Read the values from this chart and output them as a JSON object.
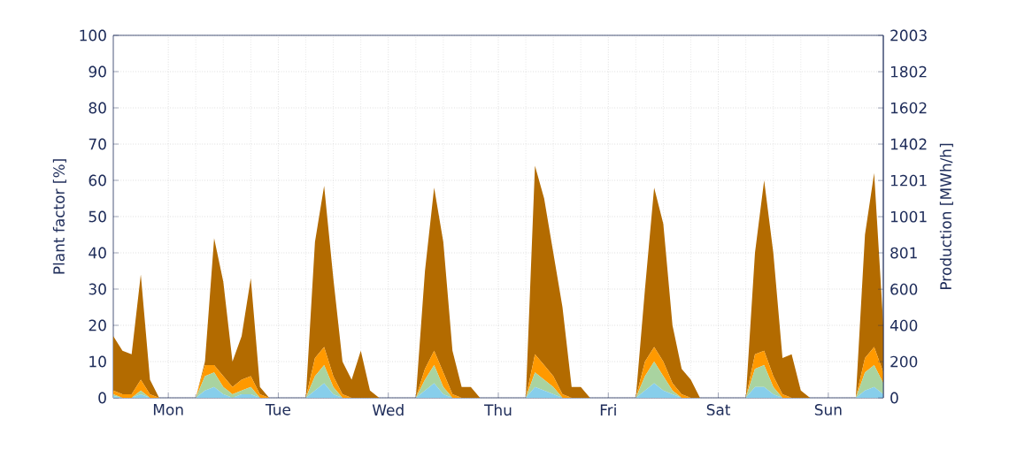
{
  "chart_data": {
    "type": "area",
    "stacked": true,
    "ylabel": "Plant factor [%]",
    "y2label": "Production [MWh/h]",
    "categories": [
      null,
      null,
      null,
      null,
      null,
      null,
      "Mon",
      null,
      null,
      null,
      null,
      null,
      null,
      null,
      null,
      null,
      null,
      null,
      "Tue",
      null,
      null,
      null,
      null,
      null,
      null,
      null,
      null,
      null,
      null,
      null,
      "Wed",
      null,
      null,
      null,
      null,
      null,
      null,
      null,
      null,
      null,
      null,
      null,
      "Thu",
      null,
      null,
      null,
      null,
      null,
      null,
      null,
      null,
      null,
      null,
      null,
      "Fri",
      null,
      null,
      null,
      null,
      null,
      null,
      null,
      null,
      null,
      null,
      null,
      "Sat",
      null,
      null,
      null,
      null,
      null,
      null,
      null,
      null,
      null,
      null,
      null,
      "Sun",
      null,
      null,
      null,
      null,
      null,
      null
    ],
    "series": [
      {
        "color": "#87ceeb",
        "values": [
          0.5,
          0,
          0,
          1,
          0,
          0,
          0,
          0,
          0,
          0,
          2,
          3,
          1,
          0,
          1,
          1,
          0,
          0,
          0,
          0,
          0,
          0,
          2,
          4,
          1,
          0,
          0,
          0,
          0,
          0,
          0,
          0,
          0,
          0,
          2,
          4,
          1,
          0,
          0,
          0,
          0,
          0,
          0,
          0,
          0,
          0,
          3,
          2,
          1,
          0,
          0,
          0,
          0,
          0,
          0,
          0,
          0,
          0,
          2,
          4,
          2,
          1,
          0,
          0,
          0,
          0,
          0,
          0,
          0,
          0,
          3,
          3,
          1,
          0,
          0,
          0,
          0,
          0,
          0,
          0,
          0,
          0,
          2,
          3,
          1
        ]
      },
      {
        "color": "#a9d3a0",
        "values": [
          0.5,
          0,
          0,
          1,
          0,
          0,
          0,
          0,
          0,
          0,
          4,
          4,
          2,
          1,
          1,
          2,
          0,
          0,
          0,
          0,
          0,
          0,
          4,
          5,
          2,
          0,
          0,
          0,
          0,
          0,
          0,
          0,
          0,
          0,
          3,
          5,
          2,
          0,
          0,
          0,
          0,
          0,
          0,
          0,
          0,
          0,
          4,
          3,
          2,
          0,
          0,
          0,
          0,
          0,
          0,
          0,
          0,
          0,
          4,
          6,
          4,
          1,
          0,
          0,
          0,
          0,
          0,
          0,
          0,
          0,
          5,
          6,
          2,
          0,
          0,
          0,
          0,
          0,
          0,
          0,
          0,
          0,
          5,
          6,
          3
        ]
      },
      {
        "color": "#ff9900",
        "values": [
          1,
          1,
          1,
          3,
          1,
          0,
          0,
          0,
          0,
          0,
          3,
          2,
          3,
          2,
          3,
          3,
          1,
          0,
          0,
          0,
          0,
          0,
          5,
          5,
          3,
          1,
          0,
          0,
          0,
          0,
          0,
          0,
          0,
          0,
          3,
          4,
          4,
          1,
          0,
          0,
          0,
          0,
          0,
          0,
          0,
          0,
          5,
          4,
          3,
          1,
          0,
          0,
          0,
          0,
          0,
          0,
          0,
          0,
          4,
          4,
          4,
          2,
          1,
          0,
          0,
          0,
          0,
          0,
          0,
          0,
          4,
          4,
          3,
          1,
          0,
          0,
          0,
          0,
          0,
          0,
          0,
          0,
          4,
          5,
          3
        ]
      },
      {
        "color": "#b36b00",
        "values": [
          15,
          12,
          11,
          29,
          4,
          0,
          0,
          0,
          0,
          0,
          1,
          35,
          26,
          7,
          12,
          27,
          2,
          0,
          0,
          0,
          0,
          0,
          32,
          44.5,
          27,
          9,
          5,
          13,
          2,
          0,
          0,
          0,
          0,
          0,
          27,
          45,
          36,
          12,
          3,
          3,
          0,
          0,
          0,
          0,
          0,
          0,
          52,
          46,
          34,
          24,
          3,
          3,
          0,
          0,
          0,
          0,
          0,
          0,
          20,
          44,
          38,
          16,
          7,
          5,
          0,
          0,
          0,
          0,
          0,
          0,
          28,
          47,
          34,
          10,
          12,
          2,
          0,
          0,
          0,
          0,
          0,
          0,
          34,
          48,
          13
        ]
      }
    ],
    "ylim": [
      0,
      100
    ],
    "yticks": [
      0,
      10,
      20,
      30,
      40,
      50,
      60,
      70,
      80,
      90,
      100
    ],
    "y2lim": [
      0,
      2003
    ],
    "y2ticks": [
      0,
      200,
      400,
      600,
      801,
      1001,
      1201,
      1402,
      1602,
      1802,
      2003
    ],
    "grid": true
  }
}
